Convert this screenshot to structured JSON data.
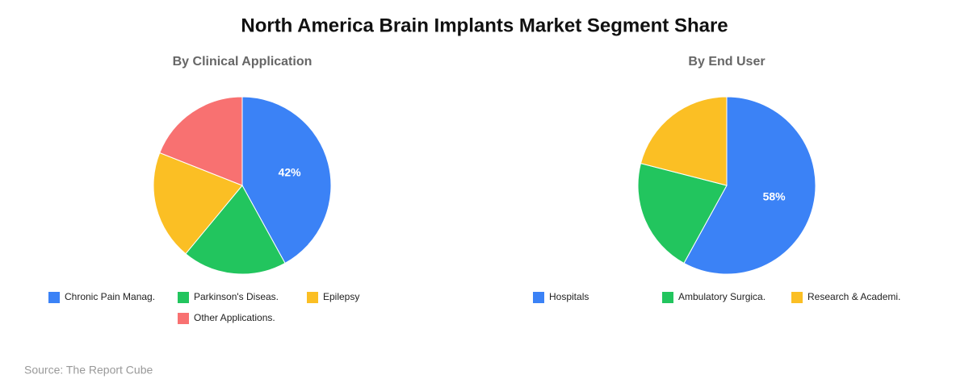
{
  "title": "North America Brain Implants Market Segment Share",
  "source": "Source: The Report Cube",
  "chart_data": [
    {
      "type": "pie",
      "title": "By Clinical Application",
      "categories": [
        "Chronic Pain Manag.",
        "Parkinson's Diseas.",
        "Epilepsy",
        "Other Applications."
      ],
      "values": [
        42,
        19,
        20,
        19
      ],
      "value_labels": [
        "42%",
        null,
        null,
        null
      ],
      "colors": [
        "#3b82f6",
        "#22c55e",
        "#fbbf24",
        "#f87171"
      ]
    },
    {
      "type": "pie",
      "title": "By End User",
      "categories": [
        "Hospitals",
        "Ambulatory Surgica.",
        "Research & Academi."
      ],
      "values": [
        58,
        21,
        21
      ],
      "value_labels": [
        "58%",
        null,
        null
      ],
      "colors": [
        "#3b82f6",
        "#22c55e",
        "#fbbf24"
      ]
    }
  ]
}
